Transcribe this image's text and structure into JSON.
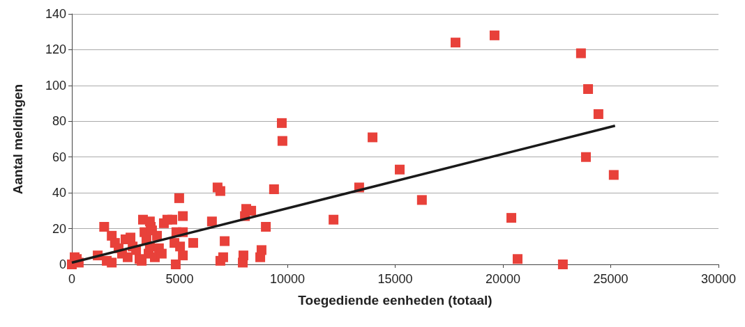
{
  "chart_data": {
    "type": "scatter",
    "xlabel": "Toegediende eenheden (totaal)",
    "ylabel": "Aantal meldingen",
    "xlim": [
      0,
      30000
    ],
    "xticks": [
      0,
      5000,
      10000,
      15000,
      20000,
      25000,
      30000
    ],
    "ylim": [
      0,
      140
    ],
    "yticks": [
      0,
      20,
      40,
      60,
      80,
      100,
      120,
      140
    ],
    "grid": "y",
    "marker": "square",
    "series": [
      {
        "color": "#e8413a",
        "x": [
          0,
          130,
          230,
          320,
          1200,
          1500,
          1620,
          1850,
          1850,
          2000,
          2170,
          2330,
          2490,
          2590,
          2720,
          2820,
          2980,
          3140,
          3240,
          3300,
          3370,
          3460,
          3560,
          3620,
          3620,
          3660,
          3720,
          3850,
          3950,
          4040,
          4170,
          4270,
          4430,
          4660,
          4760,
          4820,
          4850,
          4980,
          5020,
          5150,
          5150,
          5150,
          5630,
          6500,
          6760,
          6890,
          6890,
          7020,
          7090,
          7930,
          7960,
          8030,
          8090,
          8320,
          8740,
          8800,
          9000,
          9380,
          9740,
          9770,
          12140,
          13330,
          13950,
          15210,
          16240,
          17800,
          19610,
          20390,
          20680,
          22780,
          23620,
          23950,
          23850,
          24430,
          25140
        ],
        "values": [
          0,
          4,
          3,
          1,
          5,
          21,
          2,
          16,
          1,
          12,
          9,
          6,
          14,
          4,
          15,
          10,
          8,
          3,
          2,
          25,
          18,
          14,
          6,
          24,
          10,
          21,
          19,
          4,
          16,
          9,
          6,
          23,
          25,
          25,
          12,
          0,
          18,
          37,
          10,
          18,
          27,
          5,
          12,
          24,
          43,
          41,
          2,
          4,
          13,
          1,
          5,
          27,
          31,
          30,
          4,
          8,
          21,
          42,
          79,
          69,
          25,
          43,
          71,
          53,
          36,
          124,
          128,
          26,
          3,
          0,
          118,
          98,
          60,
          84,
          50
        ]
      },
      {
        "type": "line",
        "color": "#1a1a1a",
        "marker": "none",
        "x": [
          0,
          25200
        ],
        "values": [
          1,
          77.5
        ]
      }
    ]
  }
}
